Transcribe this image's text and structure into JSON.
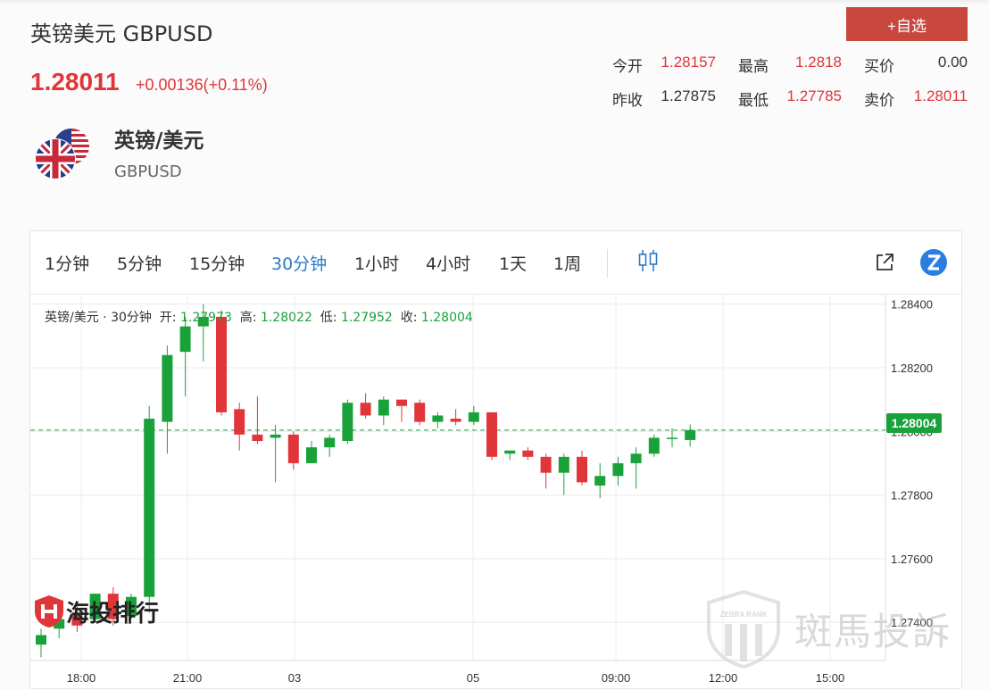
{
  "header": {
    "title": "英镑美元 GBPUSD",
    "price": "1.28011",
    "change": "+0.00136(+0.11%)",
    "add_button": "+自选"
  },
  "stats": {
    "open_label": "今开",
    "open": "1.28157",
    "high_label": "最高",
    "high": "1.2818",
    "bid_label": "买价",
    "bid": "0.00",
    "prev_close_label": "昨收",
    "prev_close": "1.27875",
    "low_label": "最低",
    "low": "1.27785",
    "ask_label": "卖价",
    "ask": "1.28011"
  },
  "symbol": {
    "name": "英镑/美元",
    "code": "GBPUSD"
  },
  "timeframes": [
    "1分钟",
    "5分钟",
    "15分钟",
    "30分钟",
    "1小时",
    "4小时",
    "1天",
    "1周"
  ],
  "active_timeframe": "30分钟",
  "chart_info": {
    "prefix": "英镑/美元 · 30分钟",
    "open_label": "开:",
    "open": "1.27973",
    "high_label": "高:",
    "high": "1.28022",
    "low_label": "低:",
    "low": "1.27952",
    "close_label": "收:",
    "close": "1.28004"
  },
  "current_price_tag": "1.28004",
  "watermarks": {
    "left": "海投排行",
    "right": "斑馬投訴",
    "badge": "ZEBRA RANK"
  },
  "icons": [
    "us-uk-flag-icon",
    "indicator-icon",
    "external-link-icon",
    "zebra-logo-icon"
  ],
  "colors": {
    "up": "#1aa23a",
    "down": "#e0363a",
    "accent": "#2f79c3",
    "button": "#c9483e"
  },
  "chart_data": {
    "type": "candlestick",
    "y_ticks": [
      "1.28400",
      "1.28200",
      "1.28000",
      "1.27800",
      "1.27600",
      "1.27400"
    ],
    "x_ticks": [
      "18:00",
      "21:00",
      "03",
      "05",
      "09:00",
      "12:00",
      "15:00"
    ],
    "ylim": [
      1.2728,
      1.2843
    ],
    "current_price": 1.28004,
    "candles": [
      {
        "o": 1.2733,
        "c": 1.2736,
        "h": 1.2738,
        "l": 1.2729
      },
      {
        "o": 1.2738,
        "c": 1.2741,
        "h": 1.2742,
        "l": 1.2735
      },
      {
        "o": 1.2743,
        "c": 1.2739,
        "h": 1.2746,
        "l": 1.2737
      },
      {
        "o": 1.2741,
        "c": 1.2749,
        "h": 1.2749,
        "l": 1.274
      },
      {
        "o": 1.2749,
        "c": 1.2741,
        "h": 1.2751,
        "l": 1.2739
      },
      {
        "o": 1.2742,
        "c": 1.2748,
        "h": 1.2749,
        "l": 1.2741
      },
      {
        "o": 1.2748,
        "c": 1.2804,
        "h": 1.2808,
        "l": 1.2743
      },
      {
        "o": 1.2803,
        "c": 1.2824,
        "h": 1.2827,
        "l": 1.2793
      },
      {
        "o": 1.2825,
        "c": 1.2833,
        "h": 1.2836,
        "l": 1.2811
      },
      {
        "o": 1.2833,
        "c": 1.2836,
        "h": 1.284,
        "l": 1.2822
      },
      {
        "o": 1.2836,
        "c": 1.2806,
        "h": 1.2838,
        "l": 1.2805
      },
      {
        "o": 1.2807,
        "c": 1.2799,
        "h": 1.2809,
        "l": 1.2794
      },
      {
        "o": 1.2799,
        "c": 1.2797,
        "h": 1.2811,
        "l": 1.2796
      },
      {
        "o": 1.2798,
        "c": 1.2799,
        "h": 1.2802,
        "l": 1.2784
      },
      {
        "o": 1.2799,
        "c": 1.279,
        "h": 1.28,
        "l": 1.2788
      },
      {
        "o": 1.279,
        "c": 1.2795,
        "h": 1.2797,
        "l": 1.279
      },
      {
        "o": 1.2795,
        "c": 1.2798,
        "h": 1.2799,
        "l": 1.2792
      },
      {
        "o": 1.2797,
        "c": 1.2809,
        "h": 1.281,
        "l": 1.2796
      },
      {
        "o": 1.2809,
        "c": 1.2805,
        "h": 1.2812,
        "l": 1.2804
      },
      {
        "o": 1.2805,
        "c": 1.281,
        "h": 1.2811,
        "l": 1.2802
      },
      {
        "o": 1.281,
        "c": 1.2808,
        "h": 1.281,
        "l": 1.2803
      },
      {
        "o": 1.2809,
        "c": 1.2803,
        "h": 1.281,
        "l": 1.2802
      },
      {
        "o": 1.2803,
        "c": 1.2805,
        "h": 1.2806,
        "l": 1.2801
      },
      {
        "o": 1.2804,
        "c": 1.2803,
        "h": 1.2807,
        "l": 1.2802
      },
      {
        "o": 1.2803,
        "c": 1.2806,
        "h": 1.2808,
        "l": 1.2802
      },
      {
        "o": 1.2806,
        "c": 1.2792,
        "h": 1.2806,
        "l": 1.2791
      },
      {
        "o": 1.2793,
        "c": 1.2794,
        "h": 1.2794,
        "l": 1.2791
      },
      {
        "o": 1.2794,
        "c": 1.2792,
        "h": 1.2795,
        "l": 1.2791
      },
      {
        "o": 1.2792,
        "c": 1.2787,
        "h": 1.2793,
        "l": 1.2782
      },
      {
        "o": 1.2787,
        "c": 1.2792,
        "h": 1.2793,
        "l": 1.278
      },
      {
        "o": 1.2792,
        "c": 1.2784,
        "h": 1.2794,
        "l": 1.2783
      },
      {
        "o": 1.2783,
        "c": 1.2786,
        "h": 1.279,
        "l": 1.2779
      },
      {
        "o": 1.2786,
        "c": 1.279,
        "h": 1.2792,
        "l": 1.2783
      },
      {
        "o": 1.279,
        "c": 1.2793,
        "h": 1.2795,
        "l": 1.2782
      },
      {
        "o": 1.2793,
        "c": 1.2798,
        "h": 1.2799,
        "l": 1.2792
      },
      {
        "o": 1.2798,
        "c": 1.2798,
        "h": 1.2801,
        "l": 1.2795
      },
      {
        "o": 1.27973,
        "c": 1.28004,
        "h": 1.28022,
        "l": 1.27952
      }
    ]
  }
}
